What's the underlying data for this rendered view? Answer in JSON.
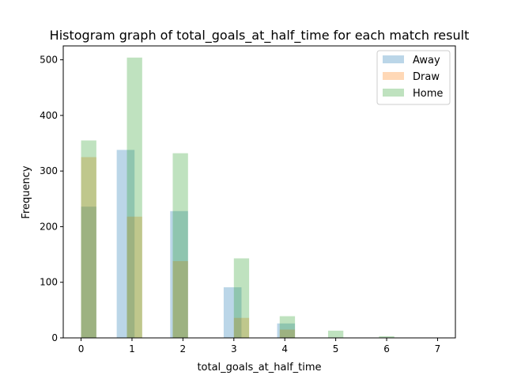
{
  "chart_data": {
    "type": "bar",
    "title": "Histogram graph of total_goals_at_half_time for each match result",
    "xlabel": "total_goals_at_half_time",
    "ylabel": "Frequency",
    "xlim": [
      -0.35,
      7.35
    ],
    "ylim": [
      0,
      525
    ],
    "x_ticks": [
      0,
      1,
      2,
      3,
      4,
      5,
      6,
      7
    ],
    "y_ticks": [
      0,
      100,
      200,
      300,
      400,
      500
    ],
    "bar_opacity": 0.3,
    "legend_position": "top-right",
    "series": [
      {
        "name": "Away",
        "color": "#1f77b4",
        "bins": [
          {
            "x0": 0.0,
            "x1": 0.3,
            "value": 236
          },
          {
            "x0": 0.7,
            "x1": 1.05,
            "value": 338
          },
          {
            "x0": 1.75,
            "x1": 2.1,
            "value": 228
          },
          {
            "x0": 2.8,
            "x1": 3.15,
            "value": 91
          },
          {
            "x0": 3.85,
            "x1": 4.2,
            "value": 26
          }
        ]
      },
      {
        "name": "Draw",
        "color": "#ff7f0e",
        "bins": [
          {
            "x0": 0.0,
            "x1": 0.3,
            "value": 325
          },
          {
            "x0": 0.9,
            "x1": 1.2,
            "value": 218
          },
          {
            "x0": 1.8,
            "x1": 2.1,
            "value": 138
          },
          {
            "x0": 3.0,
            "x1": 3.3,
            "value": 36
          },
          {
            "x0": 3.9,
            "x1": 4.2,
            "value": 15
          }
        ]
      },
      {
        "name": "Home",
        "color": "#2ca02c",
        "bins": [
          {
            "x0": 0.0,
            "x1": 0.3,
            "value": 355
          },
          {
            "x0": 0.9,
            "x1": 1.2,
            "value": 504
          },
          {
            "x0": 1.8,
            "x1": 2.1,
            "value": 332
          },
          {
            "x0": 3.0,
            "x1": 3.3,
            "value": 143
          },
          {
            "x0": 3.9,
            "x1": 4.2,
            "value": 39
          },
          {
            "x0": 4.85,
            "x1": 5.15,
            "value": 13
          },
          {
            "x0": 5.85,
            "x1": 6.15,
            "value": 3
          }
        ]
      }
    ]
  }
}
